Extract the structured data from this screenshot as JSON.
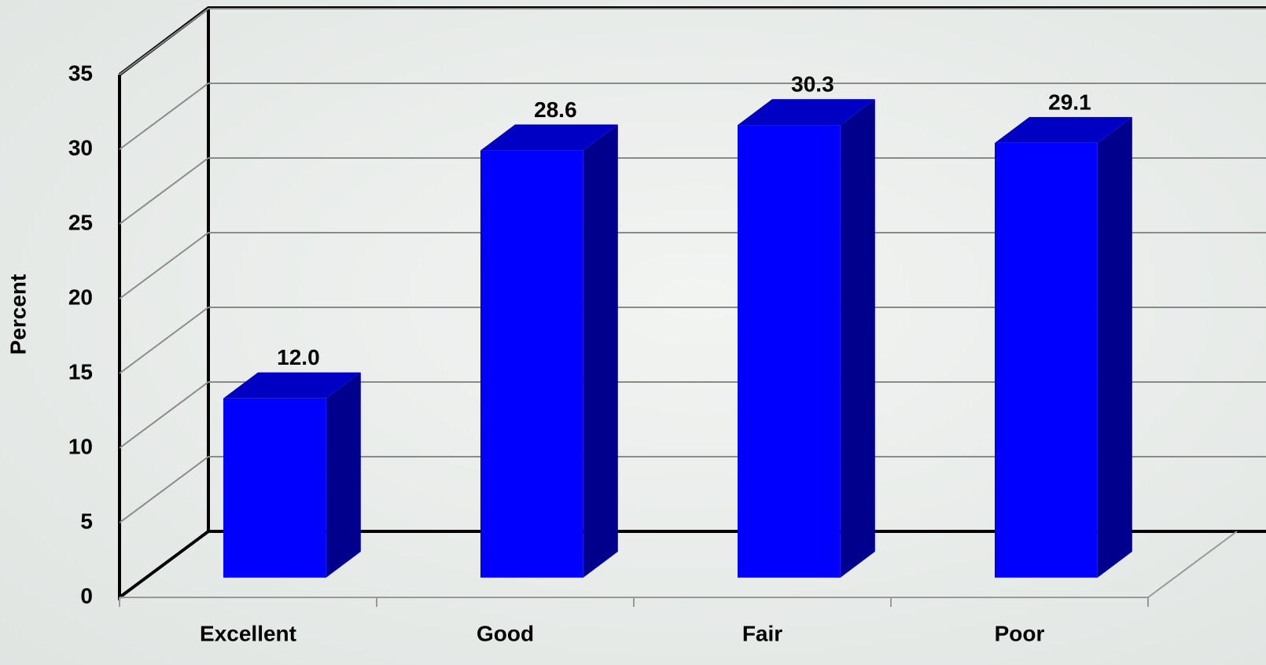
{
  "chart_data": {
    "type": "bar3d",
    "y_label": "Percent",
    "categories": [
      "Excellent",
      "Good",
      "Fair",
      "Poor"
    ],
    "values": [
      12.0,
      28.6,
      30.3,
      29.1
    ],
    "value_labels": [
      "12.0",
      "28.6",
      "30.3",
      "29.1"
    ],
    "color": "#0000ff",
    "ylim": [
      0,
      35
    ],
    "yticks": [
      0,
      5,
      10,
      15,
      20,
      25,
      30,
      35
    ],
    "grid": true
  }
}
